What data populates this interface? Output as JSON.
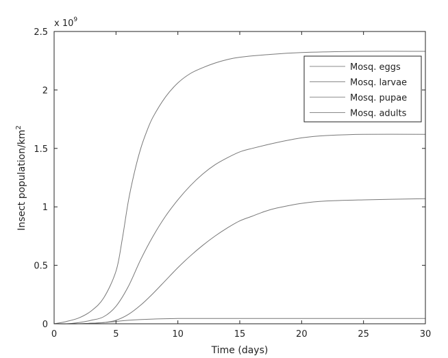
{
  "chart_data": {
    "type": "line",
    "title": "",
    "xlabel": "Time (days)",
    "ylabel": "Insect population/km",
    "ylabel_superscript": "2",
    "y_multiplier_label": "x 10",
    "y_multiplier_exponent": "9",
    "xlim": [
      0,
      30
    ],
    "ylim": [
      0,
      2.5
    ],
    "xticks": [
      0,
      5,
      10,
      15,
      20,
      25,
      30
    ],
    "xtick_labels": [
      "0",
      "5",
      "10",
      "15",
      "20",
      "25",
      "30"
    ],
    "yticks": [
      0,
      0.5,
      1,
      1.5,
      2,
      2.5
    ],
    "ytick_labels": [
      "0",
      "0.5",
      "1",
      "1.5",
      "2",
      "2.5"
    ],
    "grid": false,
    "legend_position": "top-right",
    "series": [
      {
        "name": "Mosq. eggs",
        "x": [
          0,
          1,
          2,
          3,
          4,
          5,
          5.5,
          6,
          6.5,
          7,
          7.5,
          8,
          9,
          10,
          11,
          12,
          13,
          14,
          15,
          17,
          20,
          25,
          30
        ],
        "y": [
          0.0,
          0.02,
          0.05,
          0.11,
          0.22,
          0.45,
          0.72,
          1.05,
          1.3,
          1.5,
          1.65,
          1.77,
          1.94,
          2.06,
          2.14,
          2.19,
          2.23,
          2.26,
          2.28,
          2.3,
          2.32,
          2.33,
          2.33
        ]
      },
      {
        "name": "Mosq. larvae",
        "x": [
          0,
          1,
          2,
          3,
          4,
          5,
          6,
          7,
          8,
          9,
          10,
          11,
          12,
          13,
          14,
          15,
          16,
          18,
          20,
          22,
          25,
          30
        ],
        "y": [
          0.0,
          0.0,
          0.01,
          0.03,
          0.06,
          0.15,
          0.32,
          0.55,
          0.75,
          0.92,
          1.06,
          1.18,
          1.28,
          1.36,
          1.42,
          1.47,
          1.5,
          1.55,
          1.59,
          1.61,
          1.62,
          1.62
        ]
      },
      {
        "name": "Mosq. pupae",
        "x": [
          0,
          2,
          3,
          4,
          5,
          6,
          7,
          8,
          9,
          10,
          11,
          12,
          13,
          14,
          15,
          16,
          17,
          18,
          20,
          22,
          25,
          30
        ],
        "y": [
          0.0,
          0.0,
          0.005,
          0.01,
          0.03,
          0.08,
          0.16,
          0.26,
          0.37,
          0.48,
          0.58,
          0.67,
          0.75,
          0.82,
          0.88,
          0.92,
          0.96,
          0.99,
          1.03,
          1.05,
          1.06,
          1.07
        ]
      },
      {
        "name": "Mosq. adults",
        "x": [
          0,
          2,
          4,
          5,
          6,
          8,
          10,
          15,
          20,
          25,
          30
        ],
        "y": [
          0.0,
          0.0,
          0.01,
          0.02,
          0.03,
          0.04,
          0.045,
          0.045,
          0.045,
          0.045,
          0.045
        ]
      }
    ]
  },
  "colors": {
    "axis": "#222222",
    "line": "#777777",
    "legend_line": "#888888",
    "background": "#ffffff"
  }
}
